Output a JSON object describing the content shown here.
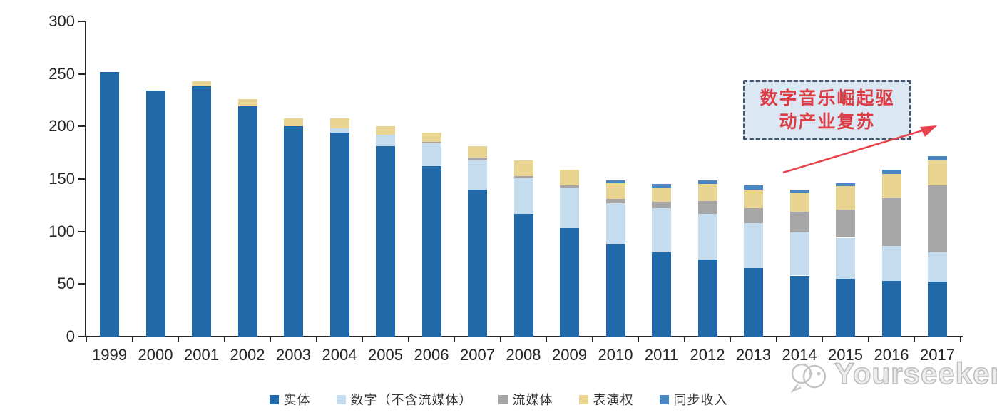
{
  "chart_data": {
    "type": "bar",
    "stacked": true,
    "title": "",
    "xlabel": "",
    "ylabel": "",
    "categories": [
      "1999",
      "2000",
      "2001",
      "2002",
      "2003",
      "2004",
      "2005",
      "2006",
      "2007",
      "2008",
      "2009",
      "2010",
      "2011",
      "2012",
      "2013",
      "2014",
      "2015",
      "2016",
      "2017"
    ],
    "series": [
      {
        "name": "实体",
        "key": "physical",
        "color": "#2169a8",
        "values": [
          252,
          234,
          238,
          219,
          200,
          194,
          181,
          162,
          140,
          117,
          103,
          88,
          80,
          73,
          65,
          58,
          55,
          53,
          52
        ]
      },
      {
        "name": "数字（不含流媒体）",
        "key": "digital-excl-streaming",
        "color": "#c5dcef",
        "values": [
          0,
          0,
          0,
          0,
          0,
          4,
          11,
          22,
          28,
          34,
          38,
          39,
          42,
          44,
          43,
          41,
          39,
          33,
          28
        ]
      },
      {
        "name": "流媒体",
        "key": "streaming",
        "color": "#a6a6a6",
        "values": [
          0,
          0,
          0,
          0,
          0,
          0,
          0,
          1,
          2,
          2,
          3,
          4,
          6,
          12,
          14,
          20,
          27,
          46,
          64
        ]
      },
      {
        "name": "表演权",
        "key": "performance-rights",
        "color": "#e9d491",
        "values": [
          0,
          0,
          5,
          7,
          8,
          10,
          8,
          9,
          11,
          15,
          15,
          15,
          14,
          16,
          18,
          18,
          22,
          23,
          24
        ]
      },
      {
        "name": "同步收入",
        "key": "sync-revenue",
        "color": "#4a86c2",
        "values": [
          0,
          0,
          0,
          0,
          0,
          0,
          0,
          0,
          0,
          0,
          0,
          3,
          3,
          4,
          4,
          3,
          3,
          4,
          4
        ]
      }
    ],
    "ylim": [
      0,
      300
    ],
    "yticks": [
      0,
      50,
      100,
      150,
      200,
      250,
      300
    ],
    "grid": false,
    "legend_position": "bottom"
  },
  "annotation": {
    "line1": "数字音乐崛起驱",
    "line2": "动产业复苏",
    "text_color": "#dc3c43",
    "box_fill": "#dce7f4",
    "box_border": "#44546a",
    "arrow_color": "#e8414b"
  },
  "watermark": {
    "text": "Yourseeker",
    "icon": "yourseeker-logo-icon",
    "color": "#bdbdbd"
  }
}
